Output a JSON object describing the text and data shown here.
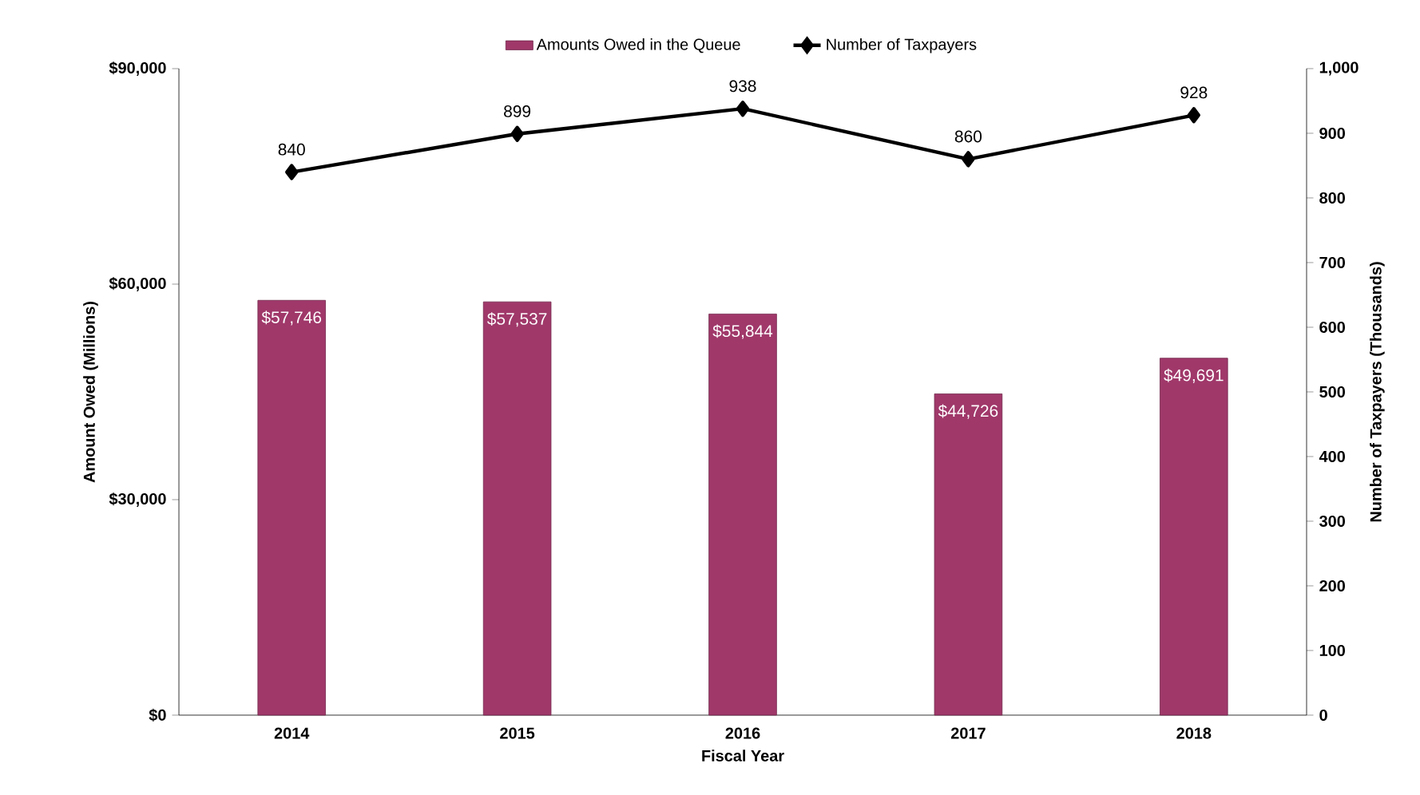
{
  "chart_data": {
    "type": "bar",
    "xlabel": "Fiscal Year",
    "ylabel": "Amount Owed (Millions)",
    "y2label": "Number of Taxpayers (Thousands)",
    "categories": [
      "2014",
      "2015",
      "2016",
      "2017",
      "2018"
    ],
    "series": [
      {
        "name": "Amounts Owed in the Queue",
        "color": "#a0386a",
        "values": [
          57746,
          57537,
          55844,
          44726,
          49691
        ],
        "value_labels": [
          "$57,746",
          "$57,537",
          "$55,844",
          "$44,726",
          "$49,691"
        ]
      },
      {
        "name": "Number of Taxpayers",
        "type": "line",
        "axis": "y2",
        "color": "#000000",
        "marker": "diamond",
        "values": [
          840,
          899,
          938,
          860,
          928
        ],
        "value_labels": [
          "840",
          "899",
          "938",
          "860",
          "928"
        ]
      }
    ],
    "ylim": [
      0,
      90000
    ],
    "yticks": [
      {
        "value": 0,
        "label": "$0"
      },
      {
        "value": 30000,
        "label": "$30,000"
      },
      {
        "value": 60000,
        "label": "$60,000"
      },
      {
        "value": 90000,
        "label": "$90,000"
      }
    ],
    "y2lim": [
      0,
      1000
    ],
    "y2ticks": [
      0,
      100,
      200,
      300,
      400,
      500,
      600,
      700,
      800,
      900,
      {
        "value": 1000,
        "label": "1,000"
      }
    ],
    "legend": "top",
    "grid": false
  }
}
